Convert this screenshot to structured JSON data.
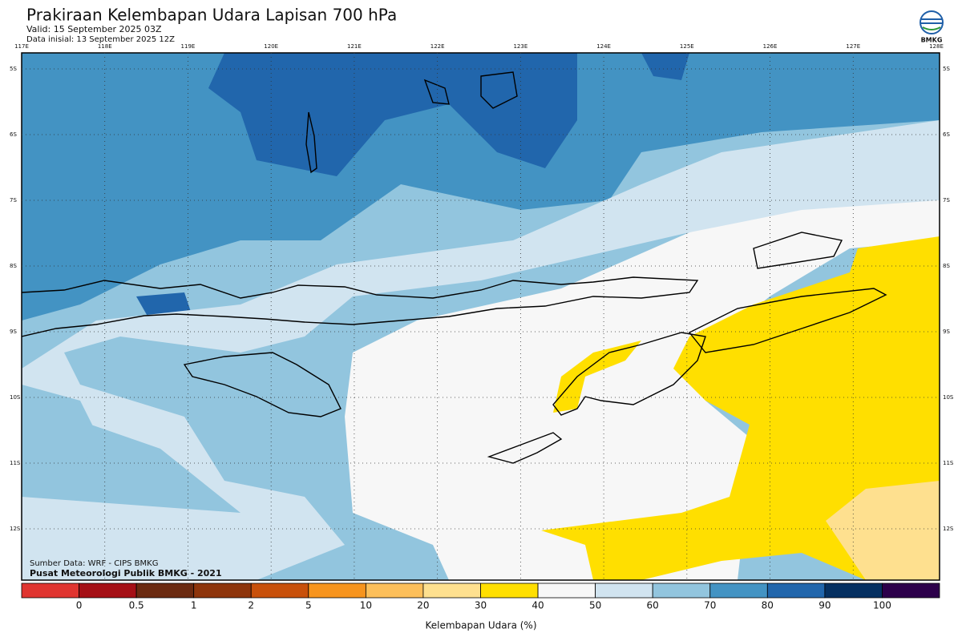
{
  "header": {
    "title": "Prakiraan Kelembapan Udara Lapisan 700 hPa",
    "valid": "Valid: 15 September 2025 03Z",
    "initial": "Data inisial: 13 September 2025 12Z",
    "logo": "BMKG"
  },
  "map": {
    "lon_labels": [
      "117E",
      "118E",
      "119E",
      "120E",
      "121E",
      "122E",
      "123E",
      "124E",
      "125E",
      "126E",
      "127E",
      "128E"
    ],
    "lat_labels": [
      "5S",
      "6S",
      "7S",
      "8S",
      "9S",
      "10S",
      "11S",
      "12S"
    ],
    "source": "Sumber Data: WRF - CIPS BMKG",
    "credit": "Pusat Meteorologi Publik BMKG - 2021"
  },
  "colorbar": {
    "title": "Kelembapan Udara (%)",
    "ticks": [
      0,
      0.5,
      1,
      2,
      5,
      10,
      20,
      30,
      40,
      50,
      60,
      70,
      80,
      90,
      100
    ],
    "colors": [
      "#e03530",
      "#a50f15",
      "#6b2a10",
      "#8e350b",
      "#c8500a",
      "#f7941d",
      "#fdbf5a",
      "#fee08f",
      "#ffdf00",
      "#f7f7f7",
      "#d1e4f0",
      "#92c5de",
      "#4393c3",
      "#2166ac",
      "#053061",
      "#2d004b"
    ]
  }
}
